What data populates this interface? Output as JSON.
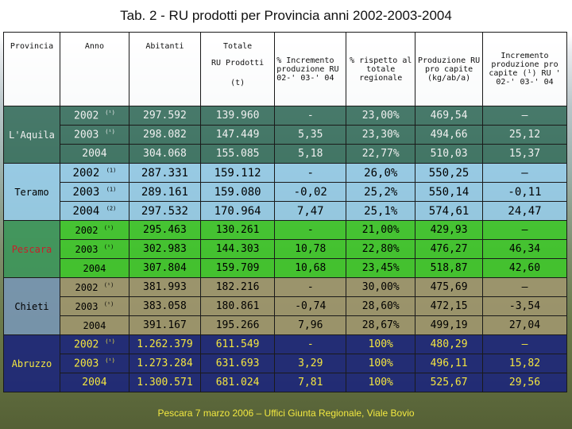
{
  "title": "Tab. 2 - RU prodotti per Provincia anni 2002-2003-2004",
  "headers": {
    "provincia": "Provincia",
    "anno": "Anno",
    "abitanti": "Abitanti",
    "totale_1": "Totale",
    "totale_2": "RU Prodotti",
    "totale_3": "(t)",
    "incremento": "% Incremento produzione RU 02-' 03-' 04",
    "rispetto": "% rispetto al totale regionale",
    "produzione": "Produzione RU pro capite (kg/ab/a)",
    "incr_procapite": "Incremento produzione pro capite (¹) RU ' 02-' 03-' 04"
  },
  "groups": [
    {
      "province": "L'Aquila",
      "rows": [
        {
          "year": "2002",
          "sup": "(¹)",
          "abitanti": "297.592",
          "totale": "139.960",
          "incremento": "-",
          "rispetto": "23,00%",
          "produzione": "469,54",
          "incr_pc": "–"
        },
        {
          "year": "2003",
          "sup": "(¹)",
          "abitanti": "298.082",
          "totale": "147.449",
          "incremento": "5,35",
          "rispetto": "23,30%",
          "produzione": "494,66",
          "incr_pc": "25,12"
        },
        {
          "year": "2004",
          "sup": "",
          "abitanti": "304.068",
          "totale": "155.085",
          "incremento": "5,18",
          "rispetto": "22,77%",
          "produzione": "510,03",
          "incr_pc": "15,37"
        }
      ]
    },
    {
      "province": "Teramo",
      "rows": [
        {
          "year": "2002",
          "sup": "(1)",
          "abitanti": "287.331",
          "totale": "159.112",
          "incremento": "-",
          "rispetto": "26,0%",
          "produzione": "550,25",
          "incr_pc": "–"
        },
        {
          "year": "2003",
          "sup": "(1)",
          "abitanti": "289.161",
          "totale": "159.080",
          "incremento": "-0,02",
          "rispetto": "25,2%",
          "produzione": "550,14",
          "incr_pc": "-0,11"
        },
        {
          "year": "2004",
          "sup": "(2)",
          "abitanti": "297.532",
          "totale": "170.964",
          "incremento": "7,47",
          "rispetto": "25,1%",
          "produzione": "574,61",
          "incr_pc": "24,47"
        }
      ]
    },
    {
      "province": "Pescara",
      "rows": [
        {
          "year": "2002",
          "sup": "(¹)",
          "abitanti": "295.463",
          "totale": "130.261",
          "incremento": "-",
          "rispetto": "21,00%",
          "produzione": "429,93",
          "incr_pc": "–"
        },
        {
          "year": "2003",
          "sup": "(¹)",
          "abitanti": "302.983",
          "totale": "144.303",
          "incremento": "10,78",
          "rispetto": "22,80%",
          "produzione": "476,27",
          "incr_pc": "46,34"
        },
        {
          "year": "2004",
          "sup": "",
          "abitanti": "307.804",
          "totale": "159.709",
          "incremento": "10,68",
          "rispetto": "23,45%",
          "produzione": "518,87",
          "incr_pc": "42,60"
        }
      ]
    },
    {
      "province": "Chieti",
      "rows": [
        {
          "year": "2002",
          "sup": "(¹)",
          "abitanti": "381.993",
          "totale": "182.216",
          "incremento": "-",
          "rispetto": "30,00%",
          "produzione": "475,69",
          "incr_pc": "–"
        },
        {
          "year": "2003",
          "sup": "(¹)",
          "abitanti": "383.058",
          "totale": "180.861",
          "incremento": "-0,74",
          "rispetto": "28,60%",
          "produzione": "472,15",
          "incr_pc": "-3,54"
        },
        {
          "year": "2004",
          "sup": "",
          "abitanti": "391.167",
          "totale": "195.266",
          "incremento": "7,96",
          "rispetto": "28,67%",
          "produzione": "499,19",
          "incr_pc": "27,04"
        }
      ]
    },
    {
      "province": "Abruzzo",
      "rows": [
        {
          "year": "2002",
          "sup": "(¹)",
          "abitanti": "1.262.379",
          "totale": "611.549",
          "incremento": "-",
          "rispetto": "100%",
          "produzione": "480,29",
          "incr_pc": "–"
        },
        {
          "year": "2003",
          "sup": "(¹)",
          "abitanti": "1.273.284",
          "totale": "631.693",
          "incremento": "3,29",
          "rispetto": "100%",
          "produzione": "496,11",
          "incr_pc": "15,82"
        },
        {
          "year": "2004",
          "sup": "",
          "abitanti": "1.300.571",
          "totale": "681.024",
          "incremento": "7,81",
          "rispetto": "100%",
          "produzione": "525,67",
          "incr_pc": "29,56"
        }
      ]
    }
  ],
  "footer": "Pescara 7 marzo 2006 – Uffici Giunta Regionale, Viale Bovio"
}
